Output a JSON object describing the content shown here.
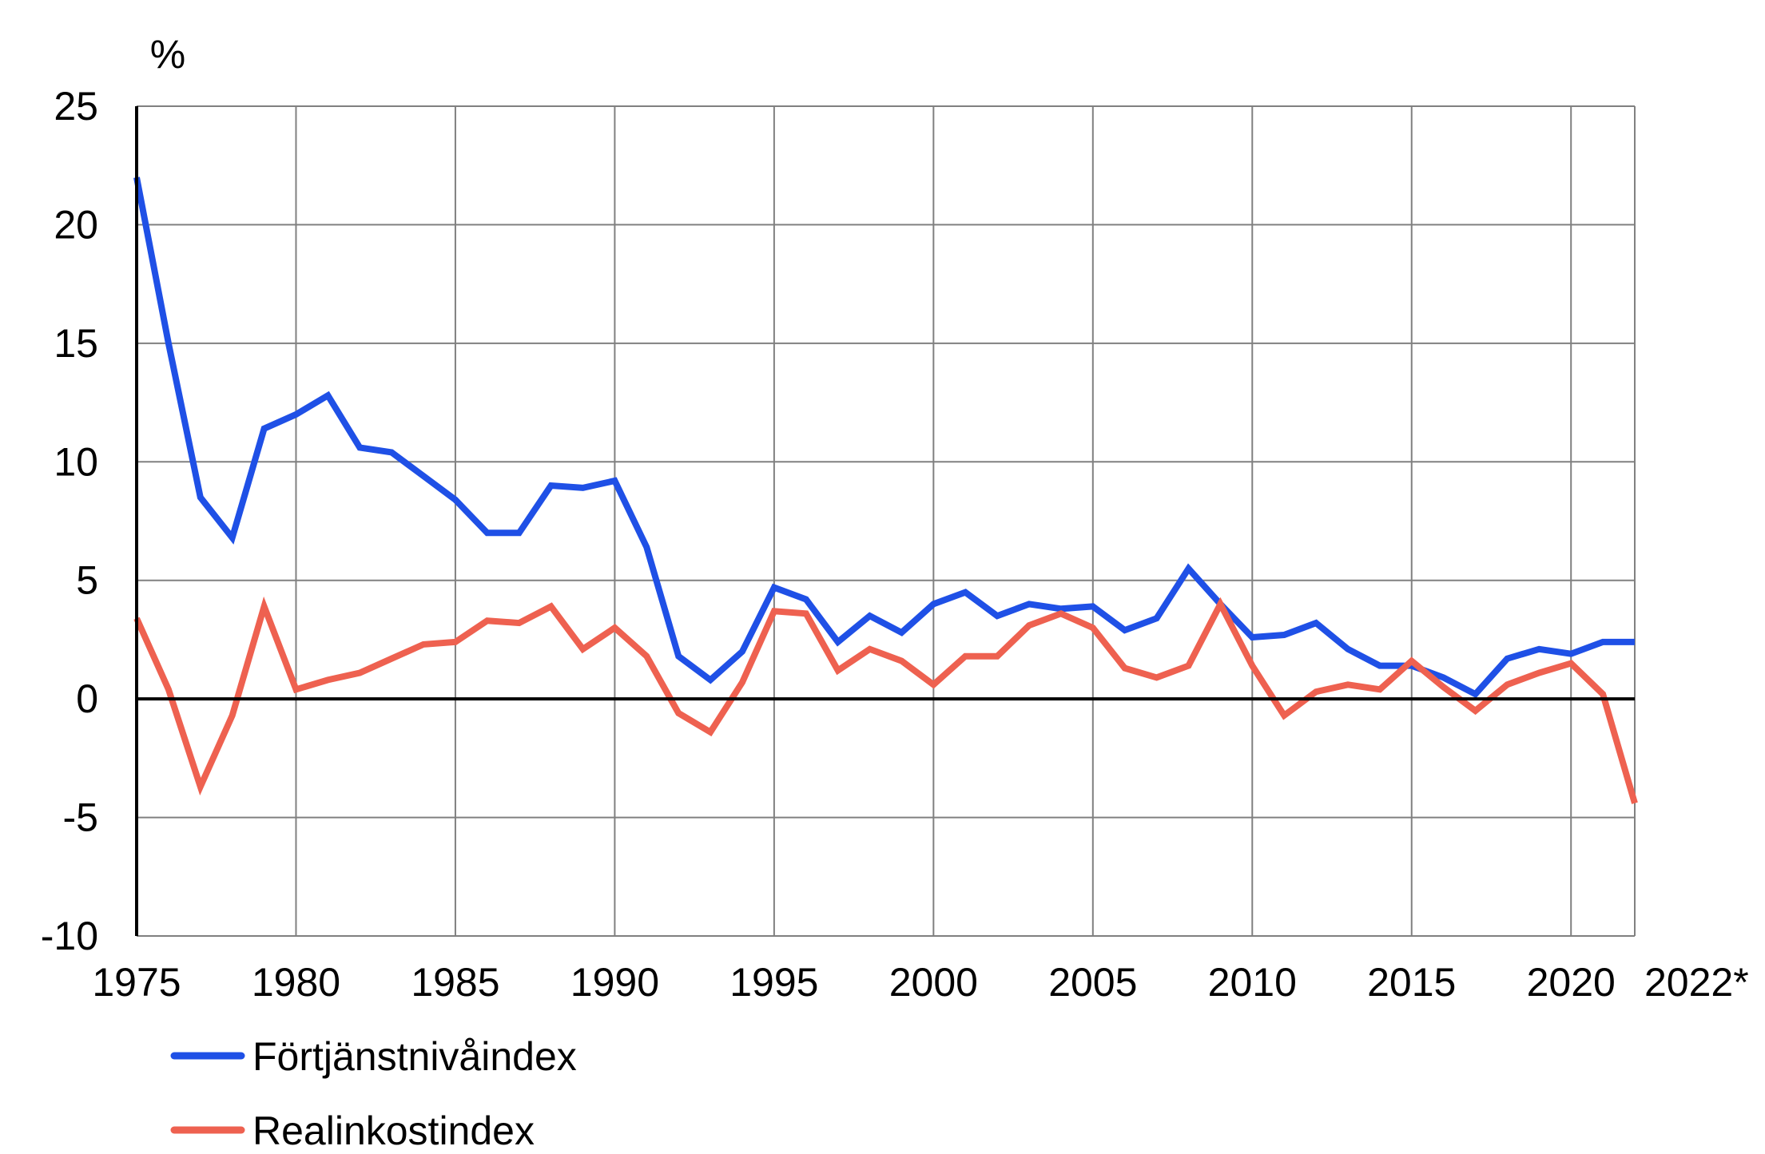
{
  "chart_data": {
    "type": "line",
    "ylabel": "%",
    "ylim": [
      -10,
      25
    ],
    "yticks": [
      -10,
      -5,
      0,
      5,
      10,
      15,
      20,
      25
    ],
    "xlim": [
      1975,
      2022
    ],
    "xticks": [
      "1975",
      "1980",
      "1985",
      "1990",
      "1995",
      "2000",
      "2005",
      "2010",
      "2015",
      "2020",
      "2022*"
    ],
    "xtick_values": [
      1975,
      1980,
      1985,
      1990,
      1995,
      2000,
      2005,
      2010,
      2015,
      2020,
      2022
    ],
    "grid": true,
    "legend_position": "bottom-left",
    "x": [
      1975,
      1976,
      1977,
      1978,
      1979,
      1980,
      1981,
      1982,
      1983,
      1984,
      1985,
      1986,
      1987,
      1988,
      1989,
      1990,
      1991,
      1992,
      1993,
      1994,
      1995,
      1996,
      1997,
      1998,
      1999,
      2000,
      2001,
      2002,
      2003,
      2004,
      2005,
      2006,
      2007,
      2008,
      2009,
      2010,
      2011,
      2012,
      2013,
      2014,
      2015,
      2016,
      2017,
      2018,
      2019,
      2020,
      2021,
      2022
    ],
    "series": [
      {
        "name": "Förtjänstnivåindex",
        "color": "#1f50e6",
        "values": [
          22,
          15,
          8.5,
          6.8,
          11.4,
          12,
          12.8,
          10.6,
          10.4,
          9.4,
          8.4,
          7,
          7,
          9,
          8.9,
          9.2,
          6.4,
          1.8,
          0.8,
          2,
          4.7,
          4.2,
          2.4,
          3.5,
          2.8,
          4,
          4.5,
          3.5,
          4,
          3.8,
          3.9,
          2.9,
          3.4,
          5.5,
          4,
          2.6,
          2.7,
          3.2,
          2.1,
          1.4,
          1.4,
          0.9,
          0.2,
          1.7,
          2.1,
          1.9,
          2.4,
          2.4
        ]
      },
      {
        "name": "Realinkostindex",
        "color": "#ee6150",
        "values": [
          3.4,
          0.4,
          -3.7,
          -0.7,
          3.9,
          0.4,
          0.8,
          1.1,
          1.7,
          2.3,
          2.4,
          3.3,
          3.2,
          3.9,
          2.1,
          3,
          1.8,
          -0.6,
          -1.4,
          0.7,
          3.7,
          3.6,
          1.2,
          2.1,
          1.6,
          0.6,
          1.8,
          1.8,
          3.1,
          3.6,
          3,
          1.3,
          0.9,
          1.4,
          4,
          1.4,
          -0.7,
          0.3,
          0.6,
          0.4,
          1.6,
          0.5,
          -0.5,
          0.6,
          1.1,
          1.5,
          0.2,
          -4.4
        ]
      }
    ]
  }
}
